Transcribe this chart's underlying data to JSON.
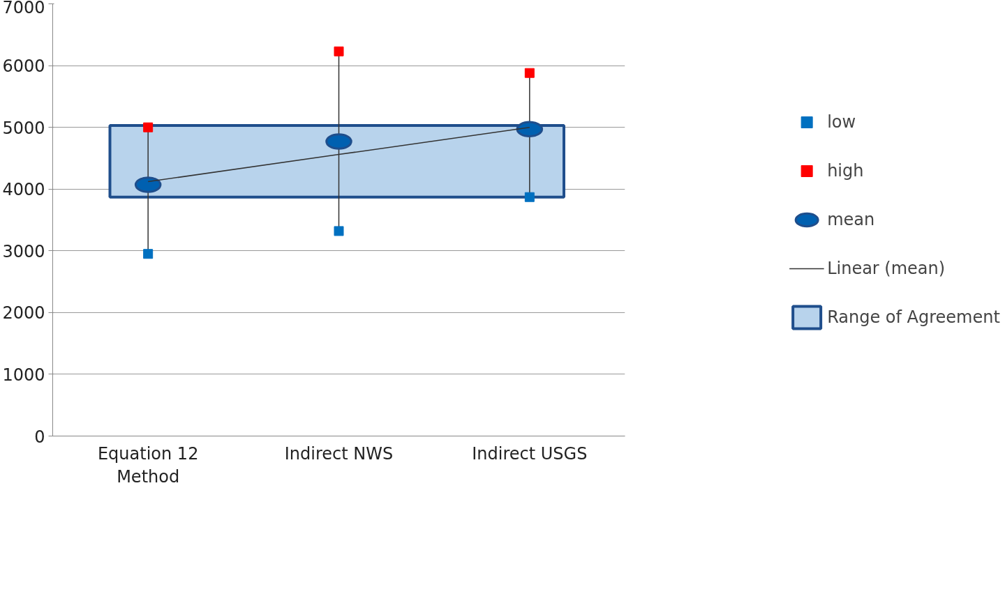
{
  "chart_data": {
    "type": "scatter",
    "categories": [
      "Equation 12\nMethod",
      "Indirect NWS",
      "Indirect USGS"
    ],
    "series": [
      {
        "name": "low",
        "color": "#0070c0",
        "marker": "square",
        "values": [
          2950,
          3320,
          3870
        ]
      },
      {
        "name": "high",
        "color": "#ff0000",
        "marker": "square",
        "values": [
          5000,
          6230,
          5880
        ]
      },
      {
        "name": "mean",
        "color": "#0060b0",
        "marker": "circle",
        "values": [
          4070,
          4770,
          4970
        ]
      },
      {
        "name": "Linear (mean)",
        "type": "line",
        "color": "#333333",
        "marker": "none",
        "values": [
          4120,
          4560,
          5000
        ]
      }
    ],
    "bands": [
      {
        "axis": "y",
        "from": 3870,
        "to": 5030,
        "label": "Range of Agreement",
        "color": "#b8d3ec"
      }
    ],
    "ylim": [
      0,
      7000
    ],
    "yticks": [
      0,
      1000,
      2000,
      3000,
      4000,
      5000,
      6000,
      7000
    ],
    "grid": "y",
    "legend": "right"
  }
}
